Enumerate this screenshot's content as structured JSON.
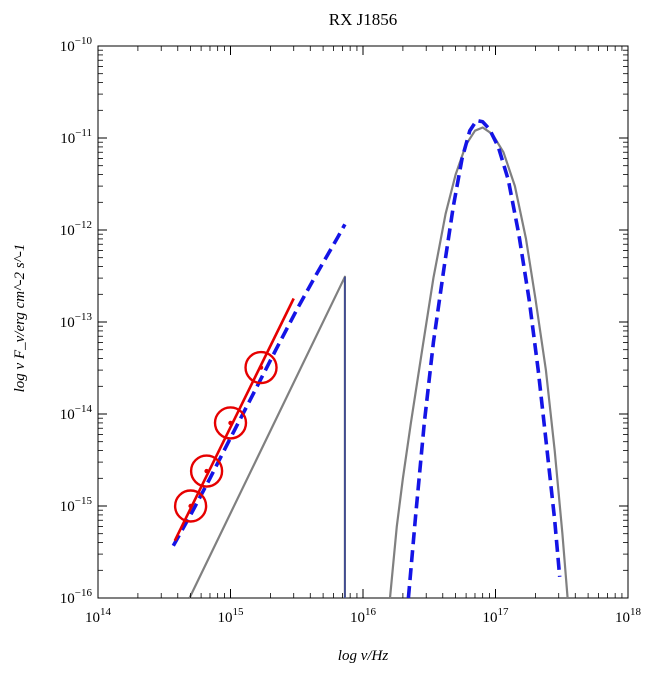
{
  "chart_data": {
    "type": "line",
    "title": "RX J1856",
    "xlabel": "log ν/Hz",
    "ylabel": "log ν F_ν/erg cm^-2 s^-1",
    "x_scale": "log",
    "y_scale": "log",
    "xlim": [
      100000000000000.0,
      1e+18
    ],
    "ylim": [
      1e-16,
      1e-10
    ],
    "x_ticks": [
      {
        "value": 100000000000000.0,
        "base": "10",
        "exp": "14"
      },
      {
        "value": 1000000000000000.0,
        "base": "10",
        "exp": "15"
      },
      {
        "value": 1e+16,
        "base": "10",
        "exp": "16"
      },
      {
        "value": 1e+17,
        "base": "10",
        "exp": "17"
      },
      {
        "value": 1e+18,
        "base": "10",
        "exp": "18"
      }
    ],
    "y_ticks": [
      {
        "value": 1e-16,
        "base": "10",
        "exp": "−16"
      },
      {
        "value": 1e-15,
        "base": "10",
        "exp": "−15"
      },
      {
        "value": 1e-14,
        "base": "10",
        "exp": "−14"
      },
      {
        "value": 1e-13,
        "base": "10",
        "exp": "−13"
      },
      {
        "value": 1e-12,
        "base": "10",
        "exp": "−12"
      },
      {
        "value": 1e-11,
        "base": "10",
        "exp": "−11"
      },
      {
        "value": 1e-10,
        "base": "10",
        "exp": "−10"
      }
    ],
    "grid": false,
    "series": [
      {
        "color": "#808080",
        "style": "solid",
        "width": 2.2,
        "x": [
          490000000000000.0,
          7300000000000000.0,
          7300000000000000.0
        ],
        "y": [
          1e-16,
          3.1e-13,
          1e-16
        ]
      },
      {
        "color": "#2a3a9a",
        "style": "solid",
        "width": 1.3,
        "x": [
          7300000000000000.0,
          7300000000000000.0
        ],
        "y": [
          3.1e-13,
          1e-16
        ]
      },
      {
        "color": "#808080",
        "style": "solid",
        "width": 2.2,
        "x": [
          1.6e+16,
          1.8e+16,
          2e+16,
          2.3e+16,
          2.8e+16,
          3.4e+16,
          4.2e+16,
          5e+16,
          6e+16,
          7e+16,
          8e+16,
          9.5e+16,
          1.15e+17,
          1.4e+17,
          1.7e+17,
          2e+17,
          2.4e+17,
          2.8e+17,
          3.2e+17,
          3.5e+17
        ],
        "y": [
          1e-16,
          6e-16,
          2e-15,
          8e-15,
          5e-14,
          3e-13,
          1.5e-12,
          4e-12,
          8.5e-12,
          1.2e-11,
          1.3e-11,
          1.1e-11,
          7e-12,
          3e-12,
          8e-13,
          1.8e-13,
          3e-14,
          4e-15,
          5e-16,
          1e-16
        ]
      },
      {
        "color": "#1414e6",
        "style": "dashed",
        "width": 3.6,
        "x": [
          370000000000000.0,
          500000000000000.0,
          700000000000000.0,
          1000000000000000.0,
          1500000000000000.0,
          2200000000000000.0,
          3200000000000000.0,
          4500000000000000.0,
          6500000000000000.0,
          7300000000000000.0
        ],
        "y": [
          3.7e-16,
          8e-16,
          2e-15,
          5.5e-15,
          1.7e-14,
          5e-14,
          1.4e-13,
          3.4e-13,
          8.5e-13,
          1.15e-12
        ]
      },
      {
        "color": "#1414e6",
        "style": "dashed",
        "width": 3.6,
        "x": [
          2.2e+16,
          2.5e+16,
          2.9e+16,
          3.4e+16,
          4.1e+16,
          4.8e+16,
          5.6e+16,
          6.4e+16,
          7.2e+16,
          8e+16,
          9e+16,
          1.05e+17,
          1.25e+17,
          1.5e+17,
          1.8e+17,
          2.1e+17,
          2.45e+17,
          2.8e+17,
          3.05e+17
        ],
        "y": [
          1e-16,
          8e-16,
          8e-15,
          6e-14,
          4e-13,
          1.8e-12,
          6e-12,
          1.2e-11,
          1.55e-11,
          1.5e-11,
          1.25e-11,
          8e-12,
          3.5e-12,
          9e-13,
          1.7e-13,
          3e-14,
          4e-15,
          7e-16,
          1.7e-16
        ]
      },
      {
        "color": "#e60000",
        "style": "solid",
        "width": 2.6,
        "x": [
          380000000000000.0,
          3000000000000000.0
        ],
        "y": [
          4.2e-16,
          1.8e-13
        ]
      }
    ],
    "points": [
      {
        "x": 500000000000000.0,
        "y": 1e-15,
        "color": "#e60000"
      },
      {
        "x": 660000000000000.0,
        "y": 2.4e-15,
        "color": "#e60000"
      },
      {
        "x": 1000000000000000.0,
        "y": 8e-15,
        "color": "#e60000"
      },
      {
        "x": 1700000000000000.0,
        "y": 3.2e-14,
        "color": "#e60000"
      }
    ]
  }
}
